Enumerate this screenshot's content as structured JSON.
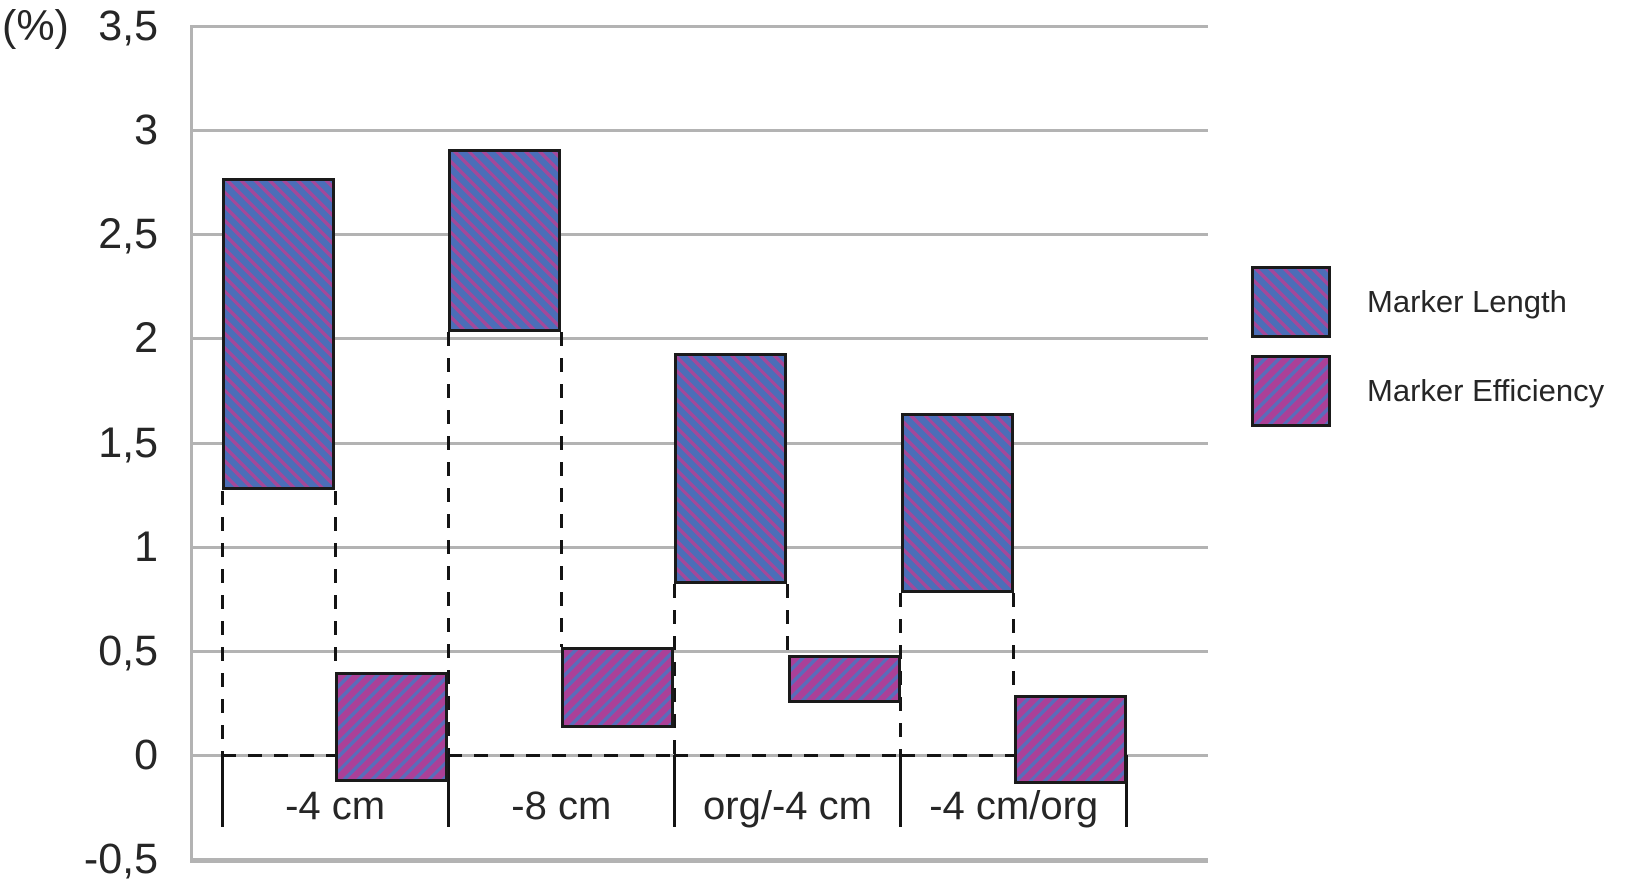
{
  "y_axis_unit": "(%)",
  "legend": {
    "items": [
      {
        "label": "Marker Length"
      },
      {
        "label": "Marker Efficiency"
      }
    ]
  },
  "chart_data": {
    "type": "bar",
    "subtype": "floating-range-bars-with-dashed-drop-lines",
    "categories": [
      "-4 cm",
      "-8 cm",
      "org/-4 cm",
      "-4 cm/org"
    ],
    "series": [
      {
        "name": "Marker Length",
        "ranges": [
          [
            1.27,
            2.77
          ],
          [
            2.03,
            2.91
          ],
          [
            0.82,
            1.93
          ],
          [
            0.78,
            1.64
          ]
        ],
        "base_color": "#4b6eb8",
        "stripe_color": "#a3489a",
        "hatch": "\\"
      },
      {
        "name": "Marker Efficiency",
        "ranges": [
          [
            -0.13,
            0.4
          ],
          [
            0.13,
            0.52
          ],
          [
            0.25,
            0.48
          ],
          [
            -0.14,
            0.29
          ]
        ],
        "base_color": "#ab4098",
        "stripe_color": "#5a6cba",
        "hatch": "/"
      }
    ],
    "title": "",
    "xlabel": "",
    "ylabel": "(%)",
    "ylim": [
      -0.5,
      3.5
    ],
    "ytick_step": 0.5,
    "ytick_labels": [
      "3,5",
      "3",
      "2,5",
      "2",
      "1,5",
      "1",
      "0,5",
      "0",
      "-0,5"
    ],
    "grid": true,
    "legend_position": "right",
    "colors": {
      "grid": "#b3b3b3",
      "bar_border": "#1a1a1a",
      "dashed_guides": "#141414",
      "text": "#262626",
      "background": "#ffffff"
    }
  }
}
